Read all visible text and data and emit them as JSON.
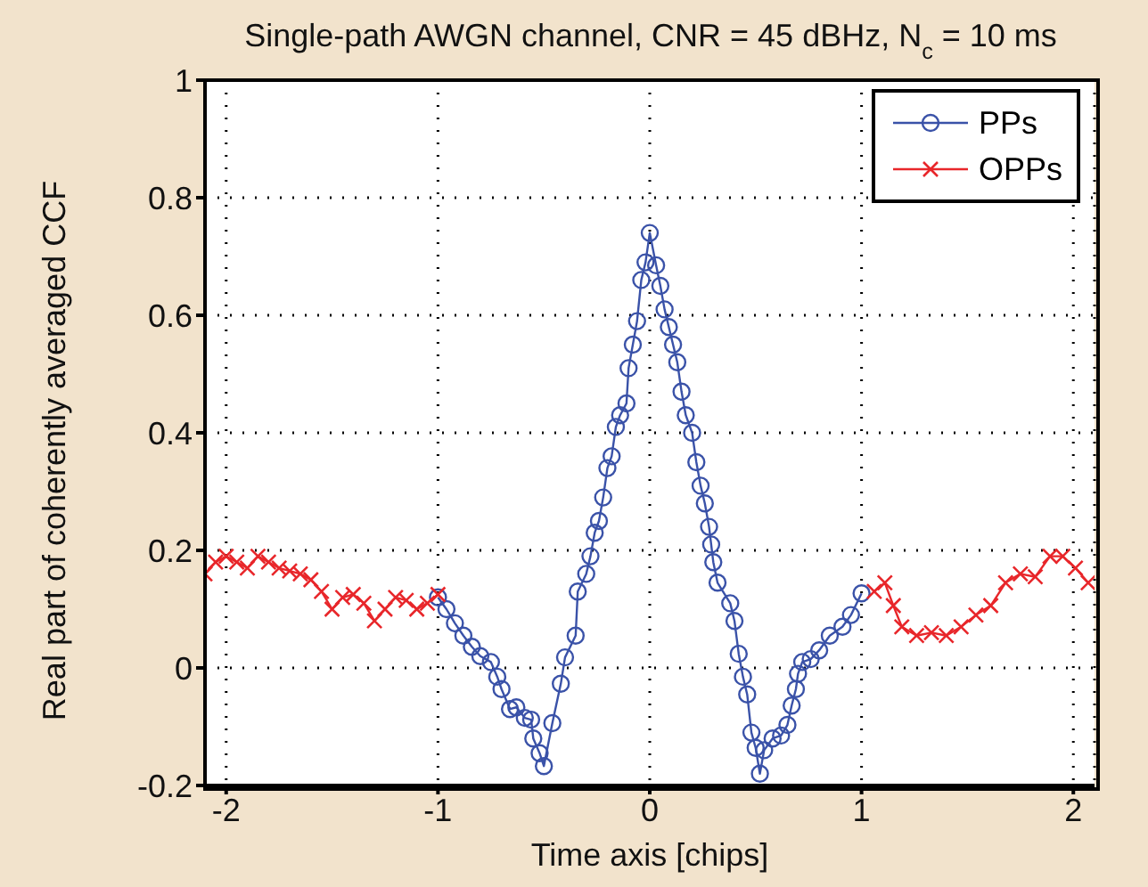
{
  "chart_data": {
    "type": "line",
    "title": "Single-path AWGN channel, CNR = 45 dBHz, N$_{c}$ = 10 ms",
    "xlabel": "Time axis [chips]",
    "ylabel": "Real part of coherently averaged CCF",
    "xlim": [
      -2.1,
      2.1
    ],
    "xticks": [
      -2,
      -1,
      0,
      1,
      2
    ],
    "ylim": [
      -0.2,
      1
    ],
    "yticks": [
      -0.2,
      0,
      0.2,
      0.4,
      0.6,
      0.8,
      1
    ],
    "grid": true,
    "legend": "top right",
    "line_style": "solid",
    "series": [
      {
        "name": "PPs",
        "color": "#3a52a8",
        "marker": "circle",
        "x": [
          -1.0,
          -0.96,
          -0.92,
          -0.88,
          -0.84,
          -0.8,
          -0.75,
          -0.72,
          -0.7,
          -0.66,
          -0.63,
          -0.59,
          -0.56,
          -0.55,
          -0.52,
          -0.5,
          -0.46,
          -0.42,
          -0.4,
          -0.35,
          -0.34,
          -0.3,
          -0.28,
          -0.26,
          -0.24,
          -0.22,
          -0.2,
          -0.18,
          -0.16,
          -0.14,
          -0.11,
          -0.1,
          -0.08,
          -0.06,
          -0.04,
          -0.02,
          0,
          0.03,
          0.05,
          0.07,
          0.09,
          0.11,
          0.13,
          0.15,
          0.17,
          0.2,
          0.22,
          0.24,
          0.26,
          0.28,
          0.29,
          0.3,
          0.32,
          0.38,
          0.4,
          0.42,
          0.44,
          0.46,
          0.48,
          0.5,
          0.52,
          0.54,
          0.58,
          0.62,
          0.65,
          0.67,
          0.69,
          0.7,
          0.72,
          0.76,
          0.8,
          0.85,
          0.91,
          0.95,
          1.0
        ],
        "values": [
          0.12,
          0.1,
          0.076,
          0.055,
          0.036,
          0.02,
          0.01,
          -0.015,
          -0.036,
          -0.07,
          -0.067,
          -0.085,
          -0.088,
          -0.12,
          -0.145,
          -0.167,
          -0.094,
          -0.027,
          0.018,
          0.055,
          0.13,
          0.16,
          0.19,
          0.23,
          0.25,
          0.29,
          0.34,
          0.36,
          0.41,
          0.43,
          0.45,
          0.51,
          0.55,
          0.59,
          0.66,
          0.69,
          0.74,
          0.685,
          0.65,
          0.61,
          0.58,
          0.55,
          0.52,
          0.47,
          0.43,
          0.4,
          0.35,
          0.31,
          0.28,
          0.24,
          0.21,
          0.18,
          0.145,
          0.11,
          0.08,
          0.024,
          -0.015,
          -0.045,
          -0.11,
          -0.136,
          -0.18,
          -0.14,
          -0.12,
          -0.115,
          -0.097,
          -0.064,
          -0.036,
          -0.01,
          0.01,
          0.015,
          0.03,
          0.055,
          0.07,
          0.09,
          0.127
        ]
      },
      {
        "name": "OPPs",
        "color": "#e8262a",
        "marker": "cross",
        "x": [
          -2.1,
          -2.05,
          -2.0,
          -1.95,
          -1.9,
          -1.85,
          -1.8,
          -1.75,
          -1.7,
          -1.65,
          -1.6,
          -1.55,
          -1.5,
          -1.45,
          -1.4,
          -1.35,
          -1.3,
          -1.25,
          -1.2,
          -1.15,
          -1.1,
          -1.05,
          -1.0,
          1.0,
          1.06,
          1.11,
          1.15,
          1.19,
          1.26,
          1.33,
          1.4,
          1.47,
          1.54,
          1.61,
          1.68,
          1.75,
          1.82,
          1.89,
          1.95,
          2.01,
          2.07
        ],
        "values": [
          0.16,
          0.18,
          0.19,
          0.18,
          0.17,
          0.19,
          0.18,
          0.17,
          0.165,
          0.16,
          0.15,
          0.13,
          0.1,
          0.12,
          0.125,
          0.11,
          0.08,
          0.1,
          0.12,
          0.115,
          0.1,
          0.11,
          0.125,
          null,
          0.13,
          0.145,
          0.106,
          0.07,
          0.055,
          0.06,
          0.055,
          0.07,
          0.09,
          0.106,
          0.145,
          0.16,
          0.155,
          0.19,
          0.19,
          0.17,
          0.145
        ]
      }
    ]
  }
}
